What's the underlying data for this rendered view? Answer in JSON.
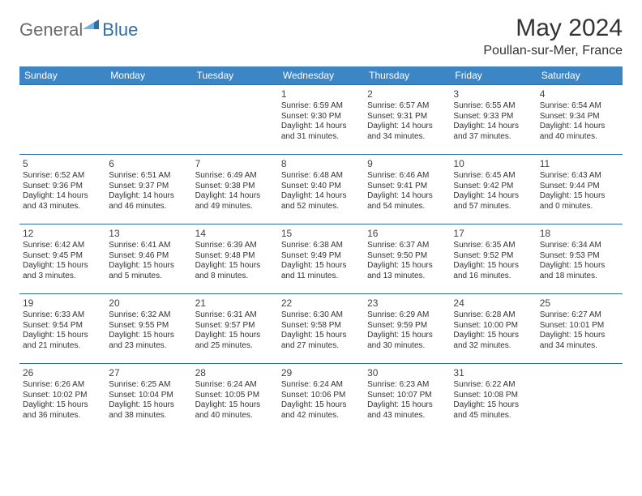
{
  "logo": {
    "general": "General",
    "blue": "Blue"
  },
  "title": "May 2024",
  "subtitle": "Poullan-sur-Mer, France",
  "colors": {
    "header_bg": "#3d86c6",
    "header_text": "#ffffff",
    "row_border": "#2f6fa8",
    "logo_gray": "#6b6b6b",
    "logo_blue": "#2f6fa8",
    "body_text": "#333333",
    "background": "#ffffff"
  },
  "typography": {
    "title_fontsize": 30,
    "subtitle_fontsize": 16,
    "header_fontsize": 12,
    "daynum_fontsize": 12,
    "cell_fontsize": 10,
    "logo_fontsize": 22
  },
  "day_headers": [
    "Sunday",
    "Monday",
    "Tuesday",
    "Wednesday",
    "Thursday",
    "Friday",
    "Saturday"
  ],
  "weeks": [
    [
      {
        "day": "",
        "text": ""
      },
      {
        "day": "",
        "text": ""
      },
      {
        "day": "",
        "text": ""
      },
      {
        "day": "1",
        "text": "Sunrise: 6:59 AM\nSunset: 9:30 PM\nDaylight: 14 hours and 31 minutes."
      },
      {
        "day": "2",
        "text": "Sunrise: 6:57 AM\nSunset: 9:31 PM\nDaylight: 14 hours and 34 minutes."
      },
      {
        "day": "3",
        "text": "Sunrise: 6:55 AM\nSunset: 9:33 PM\nDaylight: 14 hours and 37 minutes."
      },
      {
        "day": "4",
        "text": "Sunrise: 6:54 AM\nSunset: 9:34 PM\nDaylight: 14 hours and 40 minutes."
      }
    ],
    [
      {
        "day": "5",
        "text": "Sunrise: 6:52 AM\nSunset: 9:36 PM\nDaylight: 14 hours and 43 minutes."
      },
      {
        "day": "6",
        "text": "Sunrise: 6:51 AM\nSunset: 9:37 PM\nDaylight: 14 hours and 46 minutes."
      },
      {
        "day": "7",
        "text": "Sunrise: 6:49 AM\nSunset: 9:38 PM\nDaylight: 14 hours and 49 minutes."
      },
      {
        "day": "8",
        "text": "Sunrise: 6:48 AM\nSunset: 9:40 PM\nDaylight: 14 hours and 52 minutes."
      },
      {
        "day": "9",
        "text": "Sunrise: 6:46 AM\nSunset: 9:41 PM\nDaylight: 14 hours and 54 minutes."
      },
      {
        "day": "10",
        "text": "Sunrise: 6:45 AM\nSunset: 9:42 PM\nDaylight: 14 hours and 57 minutes."
      },
      {
        "day": "11",
        "text": "Sunrise: 6:43 AM\nSunset: 9:44 PM\nDaylight: 15 hours and 0 minutes."
      }
    ],
    [
      {
        "day": "12",
        "text": "Sunrise: 6:42 AM\nSunset: 9:45 PM\nDaylight: 15 hours and 3 minutes."
      },
      {
        "day": "13",
        "text": "Sunrise: 6:41 AM\nSunset: 9:46 PM\nDaylight: 15 hours and 5 minutes."
      },
      {
        "day": "14",
        "text": "Sunrise: 6:39 AM\nSunset: 9:48 PM\nDaylight: 15 hours and 8 minutes."
      },
      {
        "day": "15",
        "text": "Sunrise: 6:38 AM\nSunset: 9:49 PM\nDaylight: 15 hours and 11 minutes."
      },
      {
        "day": "16",
        "text": "Sunrise: 6:37 AM\nSunset: 9:50 PM\nDaylight: 15 hours and 13 minutes."
      },
      {
        "day": "17",
        "text": "Sunrise: 6:35 AM\nSunset: 9:52 PM\nDaylight: 15 hours and 16 minutes."
      },
      {
        "day": "18",
        "text": "Sunrise: 6:34 AM\nSunset: 9:53 PM\nDaylight: 15 hours and 18 minutes."
      }
    ],
    [
      {
        "day": "19",
        "text": "Sunrise: 6:33 AM\nSunset: 9:54 PM\nDaylight: 15 hours and 21 minutes."
      },
      {
        "day": "20",
        "text": "Sunrise: 6:32 AM\nSunset: 9:55 PM\nDaylight: 15 hours and 23 minutes."
      },
      {
        "day": "21",
        "text": "Sunrise: 6:31 AM\nSunset: 9:57 PM\nDaylight: 15 hours and 25 minutes."
      },
      {
        "day": "22",
        "text": "Sunrise: 6:30 AM\nSunset: 9:58 PM\nDaylight: 15 hours and 27 minutes."
      },
      {
        "day": "23",
        "text": "Sunrise: 6:29 AM\nSunset: 9:59 PM\nDaylight: 15 hours and 30 minutes."
      },
      {
        "day": "24",
        "text": "Sunrise: 6:28 AM\nSunset: 10:00 PM\nDaylight: 15 hours and 32 minutes."
      },
      {
        "day": "25",
        "text": "Sunrise: 6:27 AM\nSunset: 10:01 PM\nDaylight: 15 hours and 34 minutes."
      }
    ],
    [
      {
        "day": "26",
        "text": "Sunrise: 6:26 AM\nSunset: 10:02 PM\nDaylight: 15 hours and 36 minutes."
      },
      {
        "day": "27",
        "text": "Sunrise: 6:25 AM\nSunset: 10:04 PM\nDaylight: 15 hours and 38 minutes."
      },
      {
        "day": "28",
        "text": "Sunrise: 6:24 AM\nSunset: 10:05 PM\nDaylight: 15 hours and 40 minutes."
      },
      {
        "day": "29",
        "text": "Sunrise: 6:24 AM\nSunset: 10:06 PM\nDaylight: 15 hours and 42 minutes."
      },
      {
        "day": "30",
        "text": "Sunrise: 6:23 AM\nSunset: 10:07 PM\nDaylight: 15 hours and 43 minutes."
      },
      {
        "day": "31",
        "text": "Sunrise: 6:22 AM\nSunset: 10:08 PM\nDaylight: 15 hours and 45 minutes."
      },
      {
        "day": "",
        "text": ""
      }
    ]
  ]
}
